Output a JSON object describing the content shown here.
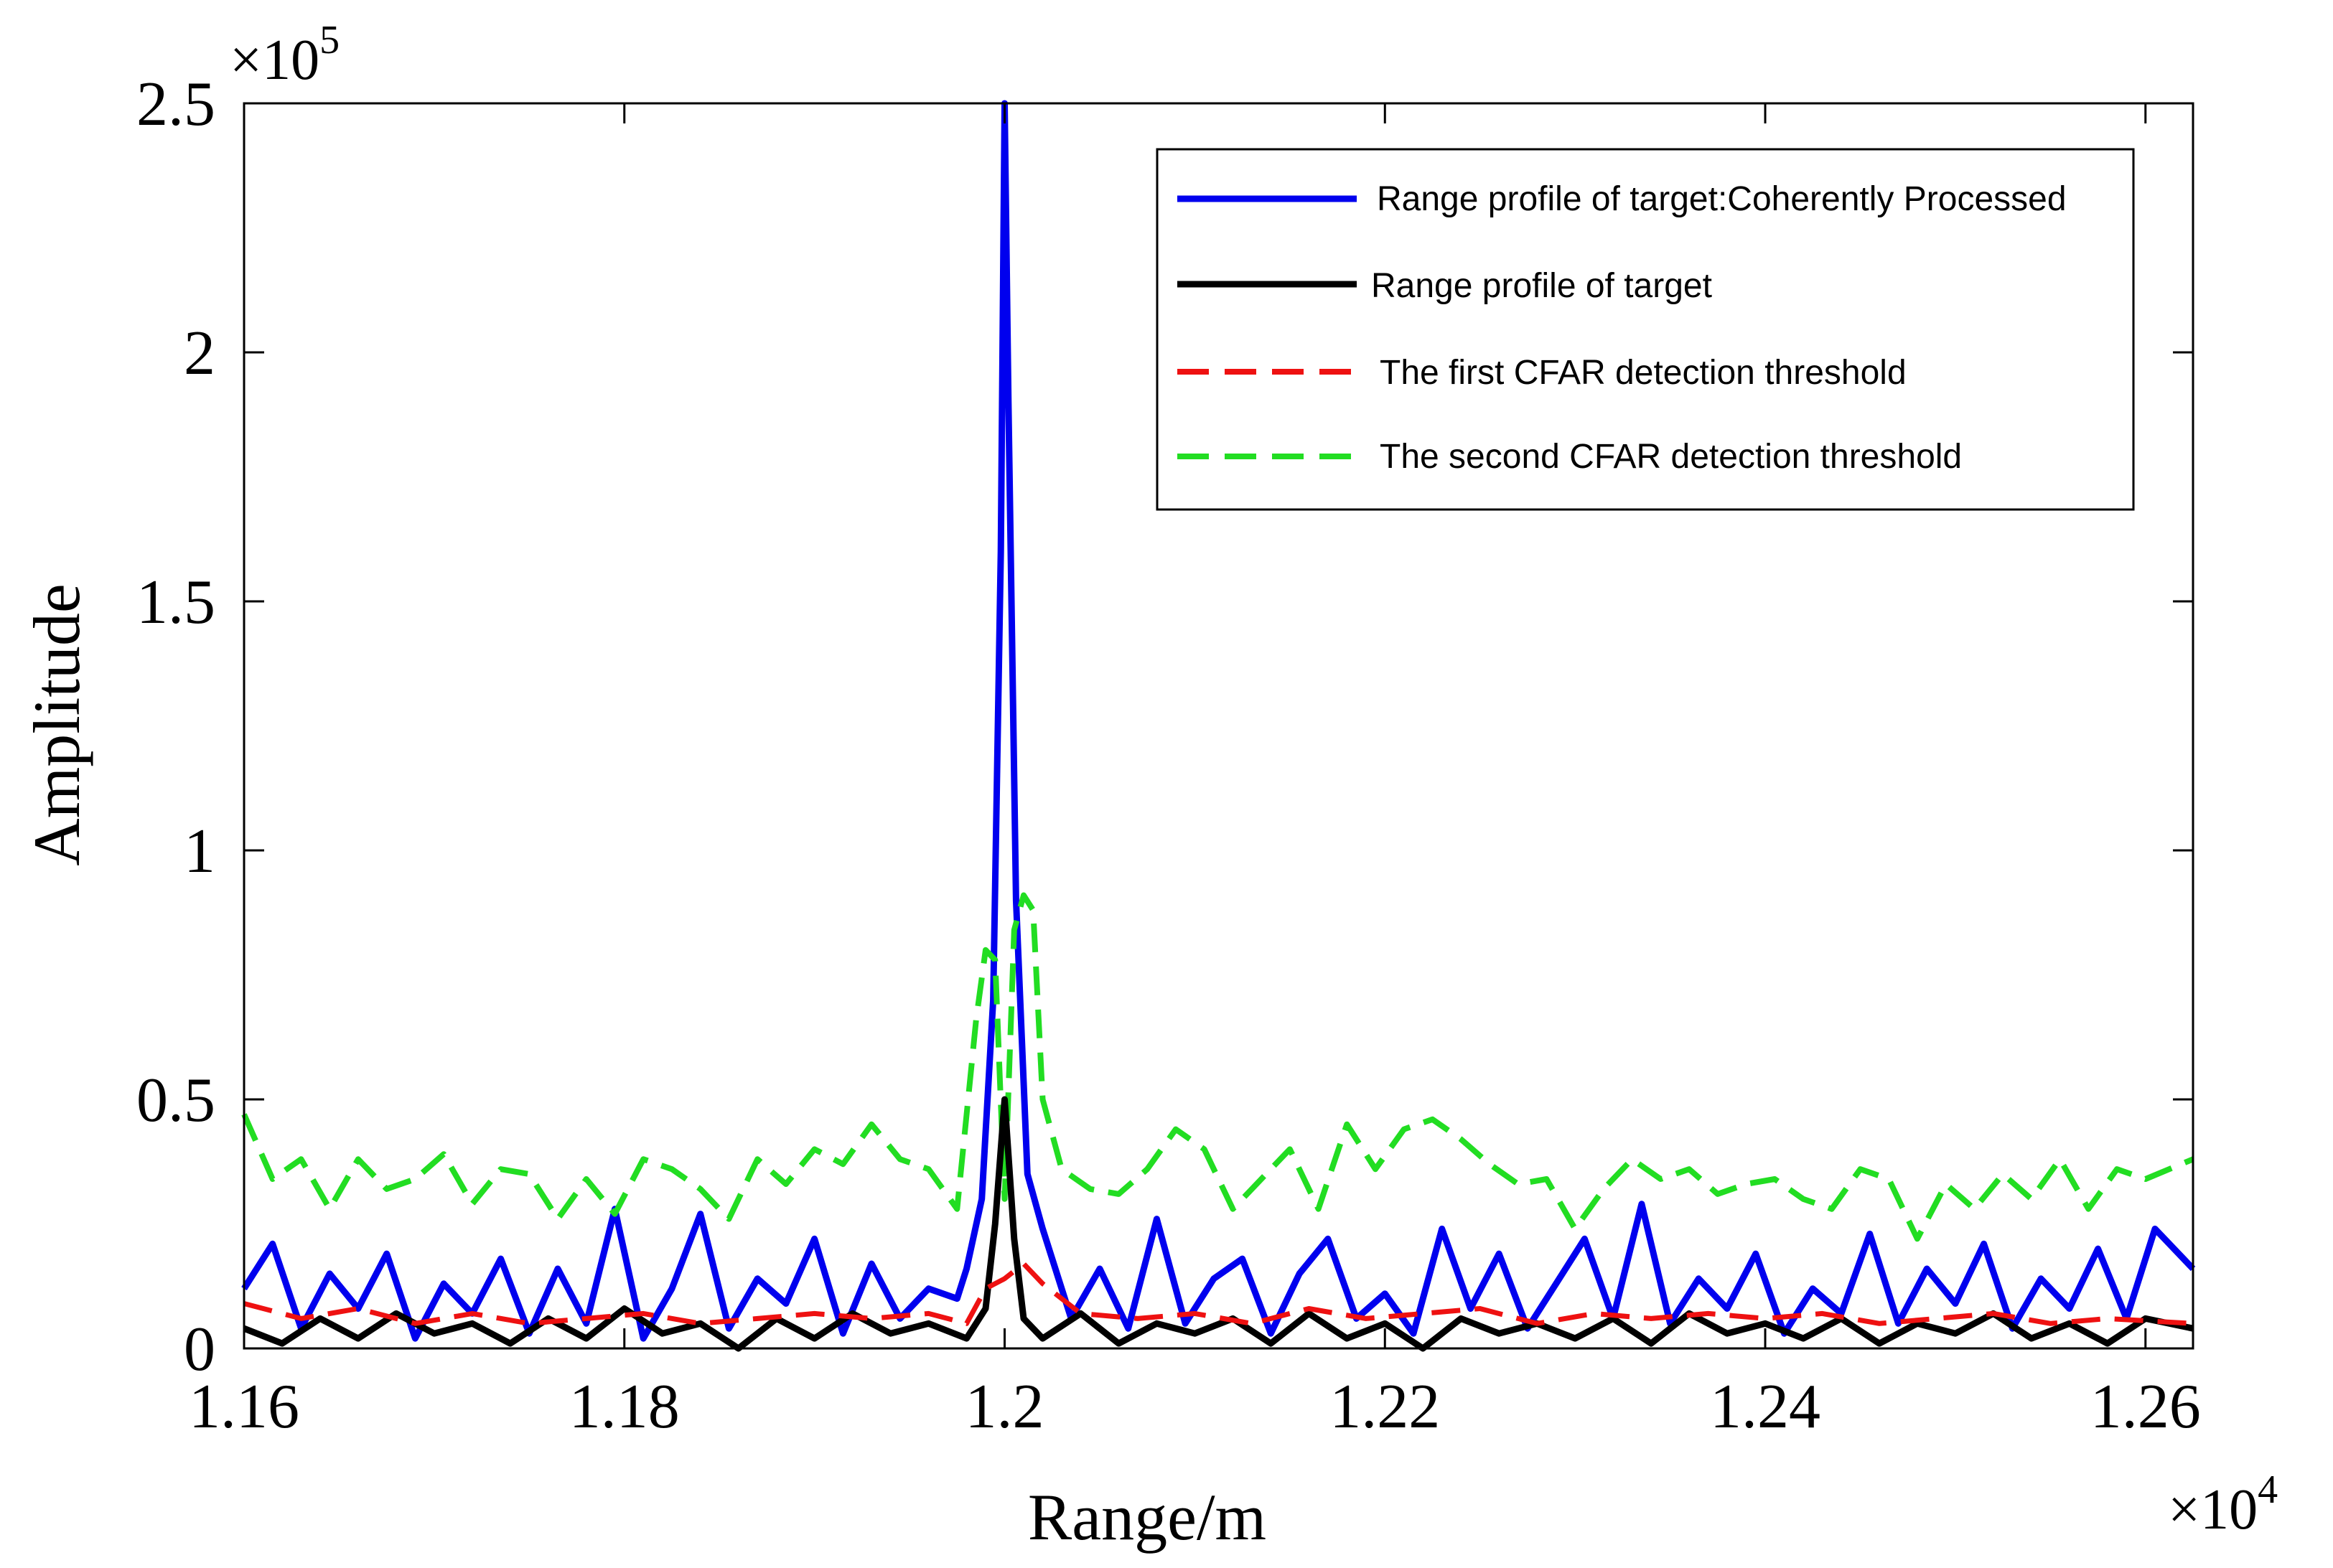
{
  "chart_data": {
    "type": "line",
    "title": "",
    "xlabel": "Range/m",
    "ylabel": "Amplitude",
    "x_multiplier": "×10",
    "x_multiplier_exp": "4",
    "y_multiplier": "×10",
    "y_multiplier_exp": "5",
    "xlim": [
      1.16,
      1.2625
    ],
    "ylim": [
      0,
      2.5
    ],
    "x_ticks": [
      1.16,
      1.18,
      1.2,
      1.22,
      1.24,
      1.26
    ],
    "x_tick_labels": [
      "1.16",
      "1.18",
      "1.2",
      "1.22",
      "1.24",
      "1.26"
    ],
    "y_ticks": [
      0,
      0.5,
      1,
      1.5,
      2,
      2.5
    ],
    "y_tick_labels": [
      "0",
      "0.5",
      "1",
      "1.5",
      "2",
      "2.5"
    ],
    "grid": false,
    "legend_position": "top-right",
    "series": [
      {
        "name": "Range profile of target:Coherently Processed",
        "color": "#0000ee",
        "style": "solid",
        "x": [
          1.16,
          1.1615,
          1.163,
          1.1645,
          1.166,
          1.1675,
          1.169,
          1.1705,
          1.172,
          1.1735,
          1.175,
          1.1765,
          1.178,
          1.1795,
          1.181,
          1.1825,
          1.184,
          1.1855,
          1.187,
          1.1885,
          1.19,
          1.1915,
          1.193,
          1.1945,
          1.196,
          1.1975,
          1.198,
          1.1988,
          1.1994,
          1.1998,
          1.2,
          1.2002,
          1.2006,
          1.2012,
          1.202,
          1.2035,
          1.205,
          1.2065,
          1.208,
          1.2095,
          1.211,
          1.2125,
          1.214,
          1.2155,
          1.217,
          1.2185,
          1.22,
          1.2215,
          1.223,
          1.2245,
          1.226,
          1.2275,
          1.229,
          1.2305,
          1.232,
          1.2335,
          1.235,
          1.2365,
          1.238,
          1.2395,
          1.241,
          1.2425,
          1.244,
          1.2455,
          1.247,
          1.2485,
          1.25,
          1.2515,
          1.253,
          1.2545,
          1.256,
          1.2575,
          1.259,
          1.2605,
          1.2625
        ],
        "y": [
          0.12,
          0.21,
          0.04,
          0.15,
          0.08,
          0.19,
          0.02,
          0.13,
          0.07,
          0.18,
          0.03,
          0.16,
          0.05,
          0.28,
          0.02,
          0.12,
          0.27,
          0.04,
          0.14,
          0.09,
          0.22,
          0.03,
          0.17,
          0.06,
          0.12,
          0.1,
          0.16,
          0.3,
          0.7,
          1.6,
          2.5,
          1.9,
          0.9,
          0.35,
          0.24,
          0.06,
          0.16,
          0.04,
          0.26,
          0.05,
          0.14,
          0.18,
          0.03,
          0.15,
          0.22,
          0.06,
          0.11,
          0.03,
          0.24,
          0.08,
          0.19,
          0.04,
          0.13,
          0.22,
          0.06,
          0.29,
          0.05,
          0.14,
          0.08,
          0.19,
          0.03,
          0.12,
          0.07,
          0.23,
          0.05,
          0.16,
          0.09,
          0.21,
          0.04,
          0.14,
          0.08,
          0.2,
          0.06,
          0.24,
          0.16
        ]
      },
      {
        "name": "Range profile of target",
        "color": "#000000",
        "style": "solid",
        "x": [
          1.16,
          1.162,
          1.164,
          1.166,
          1.168,
          1.17,
          1.172,
          1.174,
          1.176,
          1.178,
          1.18,
          1.182,
          1.184,
          1.186,
          1.188,
          1.19,
          1.192,
          1.194,
          1.196,
          1.198,
          1.199,
          1.1995,
          1.2,
          1.2005,
          1.201,
          1.202,
          1.204,
          1.206,
          1.208,
          1.21,
          1.212,
          1.214,
          1.216,
          1.218,
          1.22,
          1.222,
          1.224,
          1.226,
          1.228,
          1.23,
          1.232,
          1.234,
          1.236,
          1.238,
          1.24,
          1.242,
          1.244,
          1.246,
          1.248,
          1.25,
          1.252,
          1.254,
          1.256,
          1.258,
          1.26,
          1.2625
        ],
        "y": [
          0.04,
          0.01,
          0.06,
          0.02,
          0.07,
          0.03,
          0.05,
          0.01,
          0.06,
          0.02,
          0.08,
          0.03,
          0.05,
          0.0,
          0.06,
          0.02,
          0.07,
          0.03,
          0.05,
          0.02,
          0.08,
          0.25,
          0.5,
          0.22,
          0.06,
          0.02,
          0.07,
          0.01,
          0.05,
          0.03,
          0.06,
          0.01,
          0.07,
          0.02,
          0.05,
          0.0,
          0.06,
          0.03,
          0.05,
          0.02,
          0.06,
          0.01,
          0.07,
          0.03,
          0.05,
          0.02,
          0.06,
          0.01,
          0.05,
          0.03,
          0.07,
          0.02,
          0.05,
          0.01,
          0.06,
          0.04
        ]
      },
      {
        "name": "The first CFAR detection threshold",
        "color": "#ee1111",
        "style": "dashed",
        "x": [
          1.16,
          1.163,
          1.166,
          1.169,
          1.172,
          1.175,
          1.178,
          1.181,
          1.184,
          1.187,
          1.19,
          1.193,
          1.196,
          1.198,
          1.199,
          1.2,
          1.201,
          1.202,
          1.204,
          1.207,
          1.21,
          1.213,
          1.216,
          1.219,
          1.222,
          1.225,
          1.228,
          1.231,
          1.234,
          1.237,
          1.24,
          1.243,
          1.246,
          1.249,
          1.252,
          1.255,
          1.258,
          1.2625
        ],
        "y": [
          0.09,
          0.06,
          0.08,
          0.05,
          0.07,
          0.05,
          0.06,
          0.07,
          0.05,
          0.06,
          0.07,
          0.06,
          0.07,
          0.05,
          0.12,
          0.14,
          0.17,
          0.13,
          0.07,
          0.06,
          0.07,
          0.05,
          0.08,
          0.06,
          0.07,
          0.08,
          0.05,
          0.07,
          0.06,
          0.07,
          0.06,
          0.07,
          0.05,
          0.06,
          0.07,
          0.05,
          0.06,
          0.05
        ]
      },
      {
        "name": "The second CFAR detection threshold",
        "color": "#22dd22",
        "style": "dashed",
        "x": [
          1.16,
          1.1615,
          1.163,
          1.1645,
          1.166,
          1.1675,
          1.169,
          1.1705,
          1.172,
          1.1735,
          1.175,
          1.1765,
          1.178,
          1.1795,
          1.181,
          1.1825,
          1.184,
          1.1855,
          1.187,
          1.1885,
          1.19,
          1.1915,
          1.193,
          1.1945,
          1.196,
          1.1975,
          1.1985,
          1.199,
          1.1995,
          1.2,
          1.2005,
          1.201,
          1.2015,
          1.202,
          1.203,
          1.2045,
          1.206,
          1.2075,
          1.209,
          1.2105,
          1.212,
          1.2135,
          1.215,
          1.2165,
          1.218,
          1.2195,
          1.221,
          1.2225,
          1.224,
          1.2255,
          1.227,
          1.2285,
          1.23,
          1.2315,
          1.233,
          1.2345,
          1.236,
          1.2375,
          1.239,
          1.2405,
          1.242,
          1.2435,
          1.245,
          1.2465,
          1.248,
          1.2495,
          1.251,
          1.2525,
          1.254,
          1.2555,
          1.257,
          1.2585,
          1.26,
          1.2625
        ],
        "y": [
          0.47,
          0.34,
          0.38,
          0.28,
          0.38,
          0.32,
          0.34,
          0.39,
          0.29,
          0.36,
          0.35,
          0.26,
          0.34,
          0.27,
          0.38,
          0.36,
          0.32,
          0.26,
          0.38,
          0.33,
          0.4,
          0.37,
          0.45,
          0.38,
          0.36,
          0.28,
          0.66,
          0.8,
          0.78,
          0.3,
          0.84,
          0.91,
          0.88,
          0.5,
          0.36,
          0.32,
          0.31,
          0.36,
          0.44,
          0.4,
          0.28,
          0.34,
          0.4,
          0.28,
          0.45,
          0.36,
          0.44,
          0.46,
          0.42,
          0.37,
          0.33,
          0.34,
          0.24,
          0.32,
          0.38,
          0.34,
          0.36,
          0.31,
          0.33,
          0.34,
          0.3,
          0.28,
          0.36,
          0.34,
          0.22,
          0.33,
          0.28,
          0.35,
          0.3,
          0.38,
          0.28,
          0.36,
          0.34,
          0.38
        ]
      }
    ]
  }
}
